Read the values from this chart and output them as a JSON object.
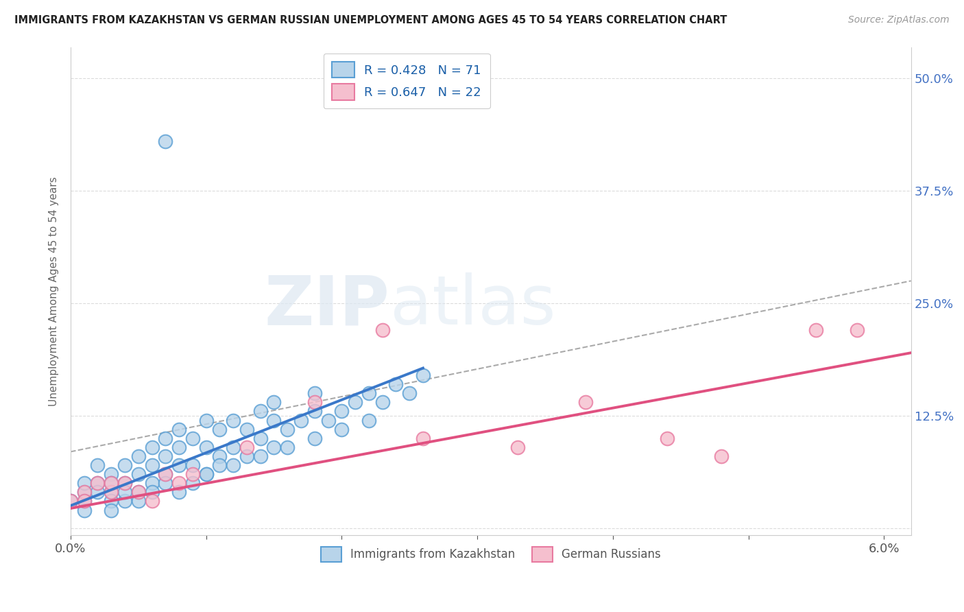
{
  "title": "IMMIGRANTS FROM KAZAKHSTAN VS GERMAN RUSSIAN UNEMPLOYMENT AMONG AGES 45 TO 54 YEARS CORRELATION CHART",
  "source": "Source: ZipAtlas.com",
  "ylabel": "Unemployment Among Ages 45 to 54 years",
  "xmin": 0.0,
  "xmax": 0.062,
  "ymin": -0.008,
  "ymax": 0.535,
  "yticks": [
    0.0,
    0.125,
    0.25,
    0.375,
    0.5
  ],
  "ytick_labels": [
    "",
    "12.5%",
    "25.0%",
    "37.5%",
    "50.0%"
  ],
  "legend_R1": "R = 0.428",
  "legend_N1": "N = 71",
  "legend_R2": "R = 0.647",
  "legend_N2": "N = 22",
  "blue_face": "#b8d4ea",
  "blue_edge": "#5a9fd4",
  "blue_line": "#3a78c9",
  "pink_face": "#f5bfce",
  "pink_edge": "#e87aa0",
  "pink_line": "#e05080",
  "gray_dash": "#aaaaaa",
  "bg": "#ffffff",
  "grid_color": "#d8d8d8",
  "title_color": "#222222",
  "source_color": "#999999",
  "yaxis_color": "#4472c4",
  "xaxis_color": "#555555",
  "watermark_color": "#e0e8f0",
  "legend_text_color": "#1a5fa8",
  "blue_scatter_x": [
    0.007,
    0.0,
    0.001,
    0.002,
    0.002,
    0.003,
    0.003,
    0.004,
    0.004,
    0.004,
    0.005,
    0.005,
    0.005,
    0.006,
    0.006,
    0.006,
    0.007,
    0.007,
    0.007,
    0.008,
    0.008,
    0.008,
    0.009,
    0.009,
    0.01,
    0.01,
    0.01,
    0.011,
    0.011,
    0.012,
    0.012,
    0.013,
    0.013,
    0.014,
    0.014,
    0.015,
    0.015,
    0.015,
    0.016,
    0.017,
    0.018,
    0.018,
    0.019,
    0.02,
    0.021,
    0.022,
    0.023,
    0.024,
    0.025,
    0.026,
    0.001,
    0.001,
    0.002,
    0.003,
    0.003,
    0.004,
    0.005,
    0.006,
    0.007,
    0.008,
    0.009,
    0.01,
    0.011,
    0.012,
    0.014,
    0.016,
    0.018,
    0.02,
    0.022,
    0.001,
    0.003
  ],
  "blue_scatter_y": [
    0.43,
    0.03,
    0.04,
    0.05,
    0.07,
    0.04,
    0.06,
    0.05,
    0.07,
    0.03,
    0.04,
    0.06,
    0.08,
    0.05,
    0.07,
    0.09,
    0.06,
    0.08,
    0.1,
    0.07,
    0.09,
    0.11,
    0.07,
    0.1,
    0.06,
    0.09,
    0.12,
    0.08,
    0.11,
    0.09,
    0.12,
    0.08,
    0.11,
    0.1,
    0.13,
    0.09,
    0.12,
    0.14,
    0.11,
    0.12,
    0.13,
    0.15,
    0.12,
    0.13,
    0.14,
    0.15,
    0.14,
    0.16,
    0.15,
    0.17,
    0.03,
    0.05,
    0.04,
    0.03,
    0.05,
    0.04,
    0.03,
    0.04,
    0.05,
    0.04,
    0.05,
    0.06,
    0.07,
    0.07,
    0.08,
    0.09,
    0.1,
    0.11,
    0.12,
    0.02,
    0.02
  ],
  "pink_scatter_x": [
    0.0,
    0.001,
    0.002,
    0.003,
    0.004,
    0.005,
    0.006,
    0.007,
    0.008,
    0.009,
    0.013,
    0.018,
    0.023,
    0.026,
    0.033,
    0.038,
    0.044,
    0.048,
    0.055,
    0.058,
    0.001,
    0.003
  ],
  "pink_scatter_y": [
    0.03,
    0.04,
    0.05,
    0.04,
    0.05,
    0.04,
    0.03,
    0.06,
    0.05,
    0.06,
    0.09,
    0.14,
    0.22,
    0.1,
    0.09,
    0.14,
    0.1,
    0.08,
    0.22,
    0.22,
    0.03,
    0.05
  ],
  "blue_line_x0": 0.0,
  "blue_line_x1": 0.026,
  "blue_line_y0": 0.025,
  "blue_line_y1": 0.178,
  "pink_line_x0": 0.0,
  "pink_line_x1": 0.062,
  "pink_line_y0": 0.022,
  "pink_line_y1": 0.195,
  "gray_line_x0": 0.0,
  "gray_line_x1": 0.062,
  "gray_line_y0": 0.085,
  "gray_line_y1": 0.275
}
